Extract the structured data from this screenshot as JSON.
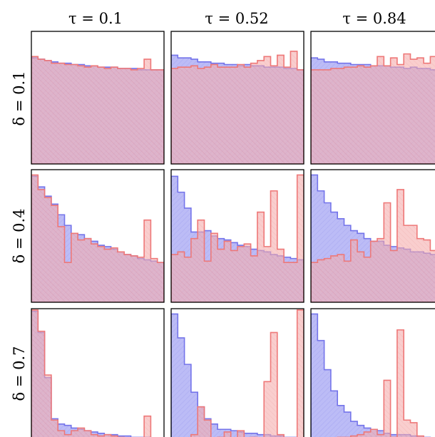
{
  "chart_data": {
    "type": "histogram-grid",
    "column_titles": [
      "τ = 0.1",
      "τ = 0.52",
      "τ = 0.84"
    ],
    "row_titles": [
      "δ = 0.1",
      "δ = 0.4",
      "δ = 0.7"
    ],
    "bins": 20,
    "ylim": [
      0,
      1
    ],
    "series_names": [
      "blue",
      "red"
    ],
    "colors": {
      "blue_fill": "#9c9cf2",
      "blue_line": "#7474ea",
      "red_fill": "#f4a4a4",
      "red_line": "#ee7878",
      "frame": "#000000"
    },
    "panels": [
      [
        {
          "blue": [
            0.8,
            0.79,
            0.78,
            0.77,
            0.76,
            0.76,
            0.75,
            0.75,
            0.74,
            0.74,
            0.73,
            0.73,
            0.73,
            0.72,
            0.72,
            0.72,
            0.71,
            0.71,
            0.71,
            0.71
          ],
          "red": [
            0.81,
            0.79,
            0.78,
            0.76,
            0.76,
            0.75,
            0.75,
            0.74,
            0.73,
            0.74,
            0.73,
            0.72,
            0.73,
            0.72,
            0.72,
            0.71,
            0.72,
            0.79,
            0.71,
            0.71
          ]
        },
        {
          "blue": [
            0.82,
            0.8,
            0.8,
            0.79,
            0.77,
            0.77,
            0.76,
            0.76,
            0.75,
            0.75,
            0.74,
            0.75,
            0.74,
            0.74,
            0.73,
            0.73,
            0.73,
            0.72,
            0.72,
            0.71
          ],
          "red": [
            0.72,
            0.73,
            0.73,
            0.74,
            0.72,
            0.73,
            0.75,
            0.73,
            0.73,
            0.73,
            0.75,
            0.73,
            0.76,
            0.78,
            0.81,
            0.74,
            0.82,
            0.73,
            0.85,
            0.71
          ]
        },
        {
          "blue": [
            0.8,
            0.79,
            0.77,
            0.77,
            0.76,
            0.76,
            0.75,
            0.75,
            0.75,
            0.74,
            0.74,
            0.74,
            0.73,
            0.73,
            0.72,
            0.73,
            0.72,
            0.72,
            0.71,
            0.71
          ],
          "red": [
            0.71,
            0.71,
            0.71,
            0.72,
            0.72,
            0.73,
            0.73,
            0.74,
            0.73,
            0.74,
            0.81,
            0.74,
            0.8,
            0.75,
            0.83,
            0.79,
            0.8,
            0.76,
            0.81,
            0.85
          ]
        }
      ],
      [
        {
          "blue": [
            0.95,
            0.87,
            0.8,
            0.74,
            0.66,
            0.58,
            0.52,
            0.51,
            0.48,
            0.46,
            0.43,
            0.42,
            0.4,
            0.38,
            0.36,
            0.35,
            0.33,
            0.32,
            0.31,
            0.3
          ],
          "red": [
            0.96,
            0.85,
            0.79,
            0.73,
            0.57,
            0.3,
            0.52,
            0.47,
            0.48,
            0.44,
            0.42,
            0.4,
            0.41,
            0.38,
            0.36,
            0.35,
            0.34,
            0.62,
            0.33,
            0.3
          ]
        },
        {
          "blue": [
            0.95,
            0.83,
            0.71,
            0.53,
            0.53,
            0.54,
            0.5,
            0.48,
            0.47,
            0.45,
            0.43,
            0.42,
            0.4,
            0.39,
            0.38,
            0.36,
            0.35,
            0.34,
            0.33,
            0.32
          ],
          "red": [
            0.36,
            0.38,
            0.34,
            0.48,
            0.62,
            0.31,
            0.52,
            0.4,
            0.46,
            0.39,
            0.42,
            0.44,
            0.35,
            0.68,
            0.42,
            0.84,
            0.4,
            0.3,
            0.3,
            0.96
          ]
        },
        {
          "blue": [
            0.96,
            0.84,
            0.75,
            0.68,
            0.63,
            0.58,
            0.54,
            0.52,
            0.48,
            0.46,
            0.46,
            0.43,
            0.42,
            0.41,
            0.4,
            0.38,
            0.38,
            0.37,
            0.36,
            0.33
          ],
          "red": [
            0.3,
            0.32,
            0.33,
            0.35,
            0.36,
            0.31,
            0.47,
            0.38,
            0.34,
            0.46,
            0.48,
            0.75,
            0.39,
            0.85,
            0.58,
            0.58,
            0.48,
            0.47,
            0.39,
            0.76
          ]
        }
      ],
      [
        {
          "blue": [
            0.98,
            0.82,
            0.48,
            0.17,
            0.13,
            0.12,
            0.1,
            0.09,
            0.08,
            0.07,
            0.06,
            0.05,
            0.05,
            0.04,
            0.04,
            0.03,
            0.03,
            0.03,
            0.02,
            0.02
          ],
          "red": [
            0.99,
            0.83,
            0.5,
            0.16,
            0.08,
            0.05,
            0.08,
            0.1,
            0.08,
            0.05,
            0.04,
            0.05,
            0.04,
            0.03,
            0.02,
            0.02,
            0.02,
            0.19,
            0.02,
            0.02
          ]
        },
        {
          "blue": [
            0.96,
            0.78,
            0.58,
            0.37,
            0.26,
            0.17,
            0.13,
            0.09,
            0.09,
            0.08,
            0.07,
            0.06,
            0.06,
            0.05,
            0.05,
            0.04,
            0.04,
            0.03,
            0.03,
            0.02
          ],
          "red": [
            0.02,
            0.02,
            0.02,
            0.05,
            0.26,
            0.16,
            0.02,
            0.03,
            0.07,
            0.02,
            0.08,
            0.02,
            0.03,
            0.02,
            0.45,
            0.82,
            0.05,
            0.01,
            0.01,
            0.99
          ]
        },
        {
          "blue": [
            0.96,
            0.76,
            0.54,
            0.38,
            0.27,
            0.22,
            0.15,
            0.12,
            0.1,
            0.09,
            0.08,
            0.06,
            0.05,
            0.05,
            0.05,
            0.04,
            0.03,
            0.03,
            0.02,
            0.02
          ],
          "red": [
            0.01,
            0.02,
            0.02,
            0.02,
            0.03,
            0.03,
            0.04,
            0.05,
            0.07,
            0.09,
            0.05,
            0.46,
            0.03,
            0.84,
            0.16,
            0.14,
            0.04,
            0.02,
            0.01,
            0.99
          ]
        }
      ]
    ]
  }
}
